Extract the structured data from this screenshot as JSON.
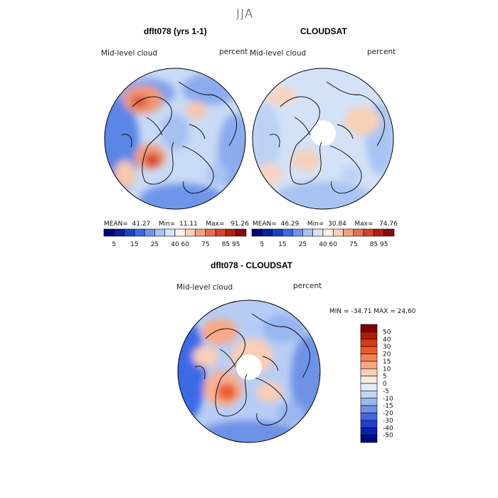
{
  "season": "JJA",
  "panels": [
    {
      "title": "dflt078 (yrs 1-1)",
      "left_label": "Mid-level cloud",
      "right_label": "percent",
      "stats": {
        "mean_label": "MEAN=",
        "mean": "41.27",
        "min_label": "Min=",
        "min": "11.11",
        "max_label": "Max=",
        "max": "91.26"
      }
    },
    {
      "title": "CLOUDSAT",
      "left_label": "Mid-level cloud",
      "right_label": "percent",
      "stats": {
        "mean_label": "MEAN=",
        "mean": "46.29",
        "min_label": "Min=",
        "min": "30.84",
        "max_label": "Max=",
        "max": "74.76"
      }
    },
    {
      "title": "dflt078 - CLOUDSAT",
      "left_label": "Mid-level cloud",
      "right_label": "percent",
      "minmax_text": "MIN = -34.71  MAX =  24.60"
    }
  ],
  "top_colorbar": {
    "colors": [
      "#00007a",
      "#0a1f9a",
      "#1a42c8",
      "#3a6ae6",
      "#6e95ef",
      "#a9c4f3",
      "#d6e4f7",
      "#fff2e6",
      "#f8d0b7",
      "#f1a283",
      "#e57055",
      "#d2462c",
      "#b41f15",
      "#8a0a08"
    ],
    "tick_labels": [
      "5",
      "15",
      "25",
      "40",
      "60",
      "75",
      "85",
      "95"
    ]
  },
  "diff_colorbar": {
    "colors": [
      "#7d0000",
      "#b01a0a",
      "#d43b16",
      "#ea5a2c",
      "#f58150",
      "#f9a884",
      "#fbcdb6",
      "#fcebe0",
      "#e3ecfb",
      "#c2d6f5",
      "#98b6ef",
      "#6e93e6",
      "#4268de",
      "#1e3fd0",
      "#0a1fb0",
      "#020a80"
    ],
    "tick_labels": [
      "50",
      "40",
      "30",
      "20",
      "15",
      "10",
      "5",
      "0",
      "-5",
      "-10",
      "-15",
      "-20",
      "-30",
      "-40",
      "-50"
    ]
  }
}
